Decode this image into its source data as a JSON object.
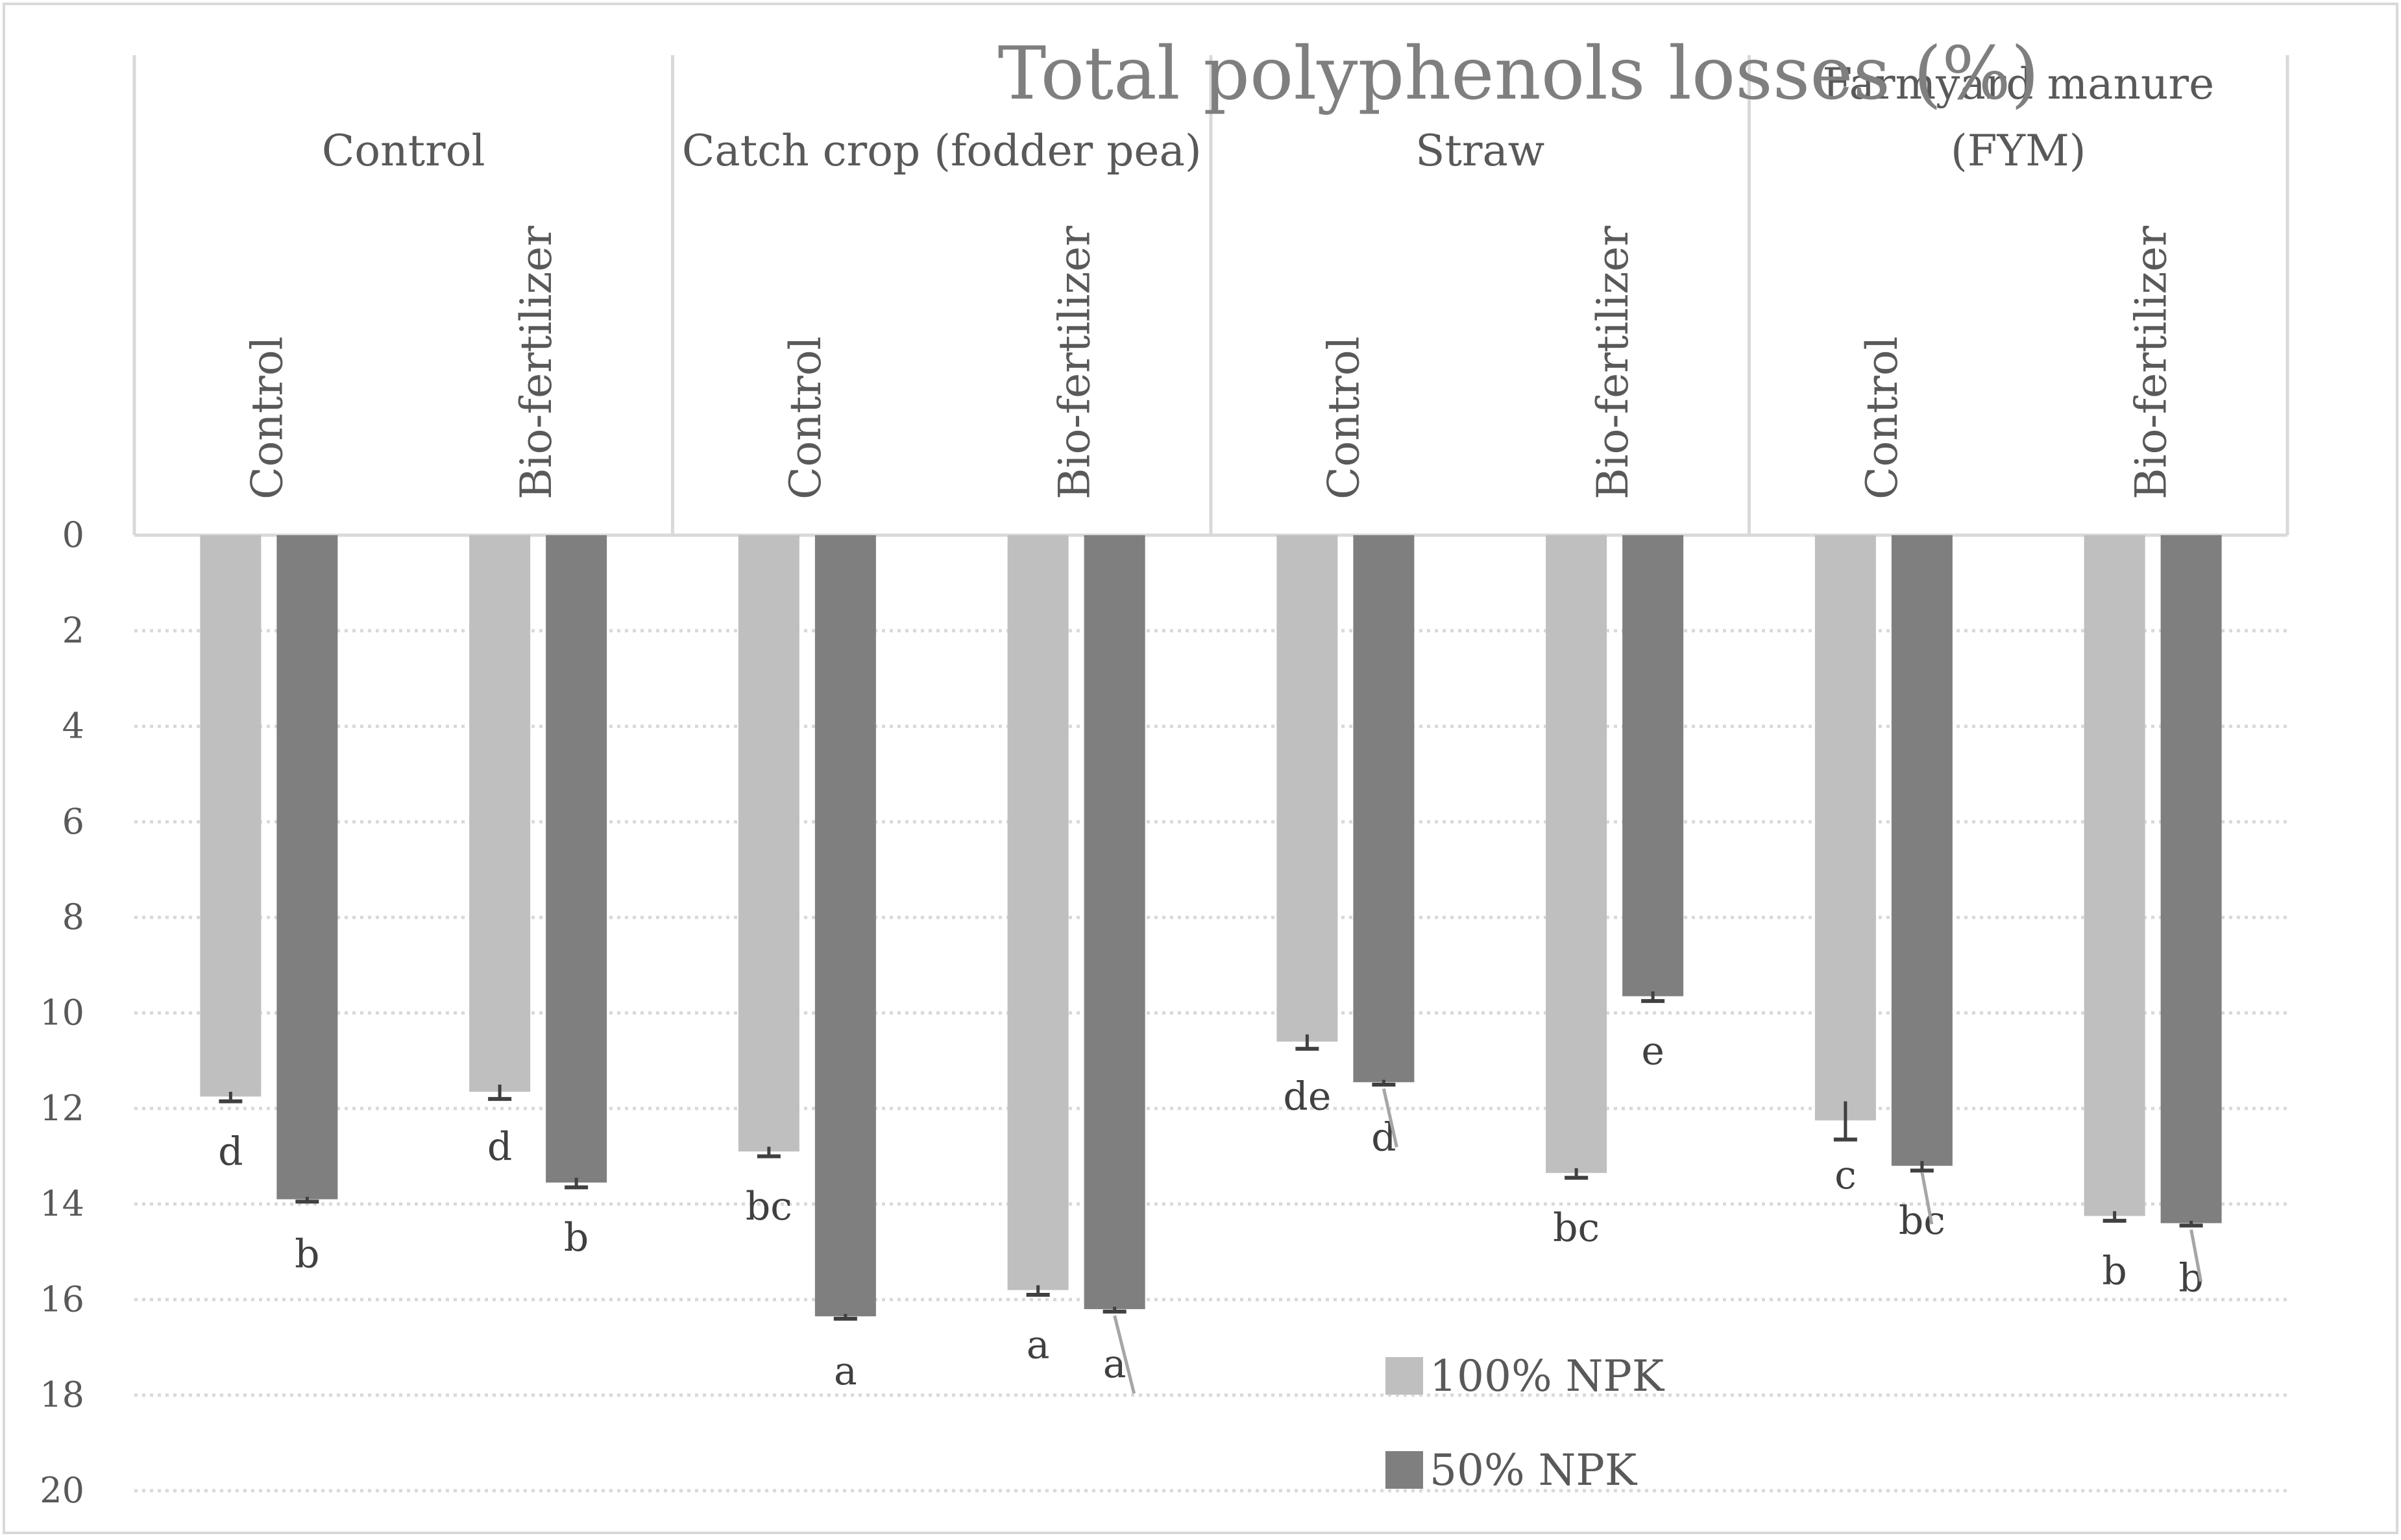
{
  "chart_data": {
    "type": "bar",
    "orientation": "inverted-vertical",
    "title": "Total polyphenols losses (%)",
    "xlabel": "",
    "ylabel": "",
    "ylim": [
      0,
      20
    ],
    "y_ticks": [
      0,
      2,
      4,
      6,
      8,
      10,
      12,
      14,
      16,
      18,
      20
    ],
    "grid": true,
    "legend_placement": "bottom-center",
    "groups": [
      {
        "label": "Control",
        "subcategories": [
          "Control",
          "Bio-fertilizer"
        ]
      },
      {
        "label": "Catch crop (fodder pea)",
        "subcategories": [
          "Control",
          "Bio-fertilizer"
        ]
      },
      {
        "label": "Straw",
        "subcategories": [
          "Control",
          "Bio-fertilizer"
        ]
      },
      {
        "label": "Farmyard manure\n(FYM)",
        "subcategories": [
          "Control",
          "Bio-fertilizer"
        ]
      }
    ],
    "categories": [
      "Control / Control",
      "Control / Bio-fertilizer",
      "Catch crop (fodder pea) / Control",
      "Catch crop (fodder pea) / Bio-fertilizer",
      "Straw / Control",
      "Straw / Bio-fertilizer",
      "Farmyard manure (FYM) / Control",
      "Farmyard manure (FYM) / Bio-fertilizer"
    ],
    "series": [
      {
        "name": "100% NPK",
        "color": "#bfbfbf",
        "values": [
          11.75,
          11.65,
          12.9,
          15.8,
          10.6,
          13.35,
          12.25,
          14.25
        ],
        "errors": [
          0.1,
          0.15,
          0.1,
          0.1,
          0.15,
          0.1,
          0.4,
          0.1
        ],
        "labels": [
          "d",
          "d",
          "bc",
          "a",
          "de",
          "bc",
          "c",
          "b"
        ]
      },
      {
        "name": "50% NPK",
        "color": "#7f7f7f",
        "values": [
          13.9,
          13.55,
          16.35,
          16.2,
          11.45,
          9.65,
          13.2,
          14.4
        ],
        "errors": [
          0.05,
          0.1,
          0.05,
          0.05,
          0.05,
          0.1,
          0.1,
          0.05
        ],
        "labels": [
          "b",
          "b",
          "a",
          "a",
          "d",
          "e",
          "bc",
          "b"
        ]
      }
    ]
  },
  "colors": {
    "axis": "#d9d9d9",
    "grid": "#d9d9d9",
    "text": "#595959",
    "title": "#7f7f7f",
    "error_bar": "#404040",
    "leader_line": "#a6a6a6"
  }
}
